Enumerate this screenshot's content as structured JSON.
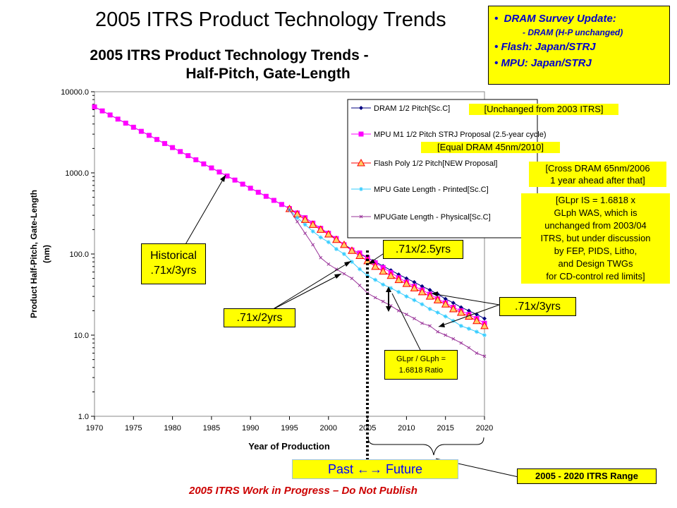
{
  "slide_title": "2005 ITRS Product Technology Trends",
  "update_box": {
    "line1": "DRAM Survey Update:",
    "line2": "- DRAM (H-P unchanged)",
    "line3": "Flash: Japan/STRJ",
    "line4": "MPU: Japan/STRJ",
    "bullet": "•"
  },
  "chart_data": {
    "type": "line",
    "title": "2005 ITRS Product Technology Trends -",
    "subtitle": "Half-Pitch, Gate-Length",
    "xlabel": "Year of Production",
    "ylabel": "Product Half-Pitch, Gate-Length",
    "ylabel_unit": "(nm)",
    "scale_y": "log",
    "xlim": [
      1970,
      2020
    ],
    "ylim": [
      1,
      10000
    ],
    "x_ticks": [
      "1970",
      "1975",
      "1980",
      "1985",
      "1990",
      "1995",
      "2000",
      "2005",
      "2010",
      "2015",
      "2020"
    ],
    "y_ticks": [
      "1.0",
      "10.0",
      "100.0",
      "1000.0",
      "10000.0"
    ],
    "grid": false,
    "legend_position": "top-right",
    "series": [
      {
        "name": "DRAM 1/2 Pitch[Sc.C]",
        "color": "#000080",
        "marker": "diamond",
        "x": [
          1970,
          1971,
          1972,
          1973,
          1974,
          1975,
          1976,
          1977,
          1978,
          1979,
          1980,
          1981,
          1982,
          1983,
          1984,
          1985,
          1986,
          1987,
          1988,
          1989,
          1990,
          1991,
          1992,
          1993,
          1994,
          1995,
          1996,
          1997,
          1998,
          1999,
          2000,
          2001,
          2002,
          2003,
          2004,
          2005,
          2006,
          2007,
          2008,
          2009,
          2010,
          2011,
          2012,
          2013,
          2014,
          2015,
          2016,
          2017,
          2018,
          2019,
          2020
        ],
        "y": [
          6500,
          5800,
          5170,
          4600,
          4100,
          3650,
          3250,
          2900,
          2580,
          2300,
          2050,
          1830,
          1630,
          1450,
          1290,
          1150,
          1025,
          915,
          815,
          726,
          647,
          577,
          514,
          458,
          408,
          363,
          320,
          280,
          240,
          207,
          180,
          152,
          130,
          115,
          100,
          90,
          80,
          71,
          63,
          56,
          50,
          45,
          40,
          36,
          32,
          28,
          25,
          22,
          20,
          18,
          16
        ]
      },
      {
        "name": "MPU M1 1/2 Pitch STRJ Proposal (2.5-year cycle)",
        "color": "#ff00ff",
        "marker": "square",
        "x": [
          1970,
          1971,
          1972,
          1973,
          1974,
          1975,
          1976,
          1977,
          1978,
          1979,
          1980,
          1981,
          1982,
          1983,
          1984,
          1985,
          1986,
          1987,
          1988,
          1989,
          1990,
          1991,
          1992,
          1993,
          1994,
          1995,
          1996,
          1997,
          1998,
          1999,
          2000,
          2001,
          2002,
          2003,
          2004,
          2005,
          2006,
          2007,
          2008,
          2009,
          2010,
          2011,
          2012,
          2013,
          2014,
          2015,
          2016,
          2017,
          2018,
          2019,
          2020
        ],
        "y": [
          6500,
          5800,
          5170,
          4600,
          4100,
          3650,
          3250,
          2900,
          2580,
          2300,
          2050,
          1830,
          1630,
          1450,
          1290,
          1150,
          1025,
          915,
          815,
          726,
          647,
          577,
          514,
          458,
          408,
          363,
          320,
          280,
          240,
          207,
          180,
          155,
          130,
          112,
          103,
          90,
          78,
          68,
          59,
          51,
          45,
          40,
          36,
          32,
          28,
          25,
          22,
          20,
          18,
          16,
          14
        ]
      },
      {
        "name": "Flash Poly 1/2 Pitch[NEW Proposal]",
        "color": "#ff0000",
        "marker": "triangle",
        "x": [
          1995,
          1996,
          1997,
          1998,
          1999,
          2000,
          2001,
          2002,
          2003,
          2004,
          2005,
          2006,
          2007,
          2008,
          2009,
          2010,
          2011,
          2012,
          2013,
          2014,
          2015,
          2016,
          2017,
          2018,
          2019,
          2020
        ],
        "y": [
          360,
          310,
          265,
          230,
          200,
          175,
          150,
          130,
          110,
          95,
          82,
          70,
          61,
          54,
          48,
          43,
          38,
          34,
          30,
          27,
          24,
          21,
          19,
          17,
          15,
          13
        ]
      },
      {
        "name": "MPU Gate Length - Printed[Sc.C]",
        "color": "#33ccff",
        "marker": "star",
        "x": [
          1995,
          1996,
          1997,
          1998,
          1999,
          2000,
          2001,
          2002,
          2003,
          2004,
          2005,
          2006,
          2007,
          2008,
          2009,
          2010,
          2011,
          2012,
          2013,
          2014,
          2015,
          2016,
          2017,
          2018,
          2019,
          2020
        ],
        "y": [
          350,
          280,
          230,
          190,
          160,
          140,
          115,
          100,
          80,
          65,
          54,
          48,
          42,
          38,
          34,
          30,
          27,
          24,
          21,
          19,
          17,
          15,
          13,
          12,
          11,
          10
        ]
      },
      {
        "name": "MPUGate Length - Physical[Sc.C]",
        "color": "#993399",
        "marker": "cross",
        "x": [
          1995,
          1996,
          1997,
          1998,
          1999,
          2000,
          2001,
          2002,
          2003,
          2004,
          2005,
          2006,
          2007,
          2008,
          2009,
          2010,
          2011,
          2012,
          2013,
          2014,
          2015,
          2016,
          2017,
          2018,
          2019,
          2020
        ],
        "y": [
          350,
          250,
          180,
          130,
          90,
          75,
          65,
          57,
          50,
          41,
          33,
          29,
          26,
          23,
          20,
          18,
          16,
          14,
          13,
          11,
          10,
          9,
          8,
          7,
          6,
          5.5
        ]
      }
    ],
    "annotations": {
      "unchanged": "[Unchanged from 2003 ITRS]",
      "equal_dram": "[Equal DRAM 45nm/2010]",
      "cross_dram_1": "[Cross DRAM 65nm/2006",
      "cross_dram_2": "1 year ahead after that]",
      "glpr_1": "[GLpr IS  = 1.6818 x",
      "glpr_2": "GLph WAS, which is",
      "glpr_3": "unchanged from 2003/04",
      "glpr_4": "ITRS,  but under discussion",
      "glpr_5": "by FEP,  PIDS, Litho,",
      "glpr_6": "and Design TWGs",
      "glpr_7": "for CD-control red limits]",
      "historical_1": "Historical",
      "historical_2": ".71x/3yrs",
      "rate_2yrs": ".71x/2yrs",
      "rate_25yrs": ".71x/2.5yrs",
      "rate_3yrs": ".71x/3yrs",
      "ratio_1": "GLpr / GLph =",
      "ratio_2": "1.6818 Ratio"
    }
  },
  "past_future": "Past ←→ Future",
  "wip_notice": "2005 ITRS Work in Progress – Do Not Publish",
  "range_label": "2005 - 2020 ITRS Range"
}
